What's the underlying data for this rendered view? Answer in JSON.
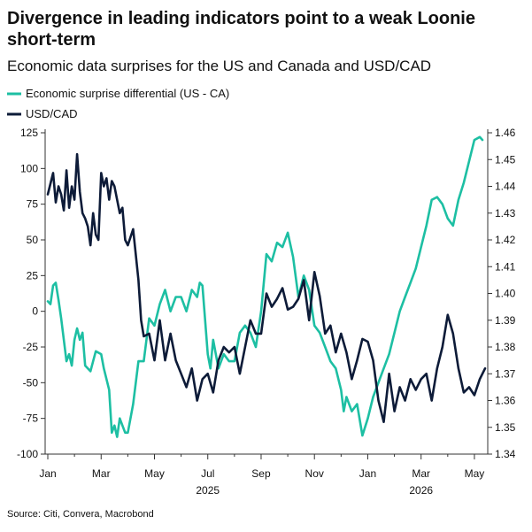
{
  "chart_data": {
    "type": "line",
    "title_line1": "Divergence in leading indicators point to a weak Loonie",
    "title_line2": "short-term",
    "subtitle": "Economic data surprises for the US and Canada and USD/CAD",
    "source": "Source: Citi, Convera, Macrobond",
    "x_ticks": [
      "Jan",
      "Mar",
      "May",
      "Jul",
      "Sep",
      "Nov",
      "Jan",
      "Mar",
      "May"
    ],
    "x_tick_months": [
      0,
      2,
      4,
      6,
      8,
      10,
      12,
      14,
      16
    ],
    "year_labels": [
      {
        "label": "2025",
        "month": 6
      },
      {
        "label": "2026",
        "month": 14
      }
    ],
    "x_range_months": [
      -0.1,
      16.5
    ],
    "left_axis": {
      "ticks": [
        "125",
        "100",
        "75",
        "50",
        "25",
        "0",
        "-25",
        "-50",
        "-75",
        "-100"
      ],
      "ylim": [
        -100,
        125
      ]
    },
    "right_axis": {
      "ticks": [
        "1.46",
        "1.45",
        "1.44",
        "1.43",
        "1.42",
        "1.41",
        "1.40",
        "1.39",
        "1.38",
        "1.37",
        "1.36",
        "1.35",
        "1.34"
      ],
      "ylim": [
        1.34,
        1.46
      ]
    },
    "series": [
      {
        "name": "Economic surprise differential (US - CA)",
        "color": "#1dbfa3",
        "axis": "left",
        "x": [
          0,
          0.1,
          0.2,
          0.3,
          0.4,
          0.5,
          0.6,
          0.7,
          0.8,
          0.9,
          1.0,
          1.1,
          1.2,
          1.3,
          1.4,
          1.5,
          1.6,
          1.7,
          1.8,
          2.0,
          2.1,
          2.3,
          2.4,
          2.5,
          2.6,
          2.7,
          2.8,
          2.9,
          3.0,
          3.2,
          3.4,
          3.6,
          3.8,
          4.0,
          4.2,
          4.4,
          4.6,
          4.8,
          5.0,
          5.2,
          5.4,
          5.6,
          5.7,
          5.8,
          6.0,
          6.1,
          6.2,
          6.4,
          6.6,
          6.8,
          7.0,
          7.2,
          7.4,
          7.6,
          7.8,
          8.0,
          8.2,
          8.4,
          8.6,
          8.8,
          9.0,
          9.2,
          9.4,
          9.6,
          9.8,
          10.0,
          10.2,
          10.4,
          10.6,
          10.8,
          11.0,
          11.1,
          11.2,
          11.4,
          11.6,
          11.8,
          12.0,
          12.2,
          12.4,
          12.6,
          12.8,
          13.0,
          13.2,
          13.4,
          13.6,
          13.8,
          14.0,
          14.2,
          14.4,
          14.6,
          14.8,
          15.0,
          15.2,
          15.4,
          15.6,
          15.8,
          16.0,
          16.2,
          16.3
        ],
        "values": [
          7,
          5,
          18,
          20,
          8,
          -5,
          -20,
          -35,
          -30,
          -38,
          -20,
          -12,
          -20,
          -15,
          -38,
          -40,
          -42,
          -35,
          -28,
          -30,
          -40,
          -55,
          -85,
          -80,
          -88,
          -75,
          -80,
          -85,
          -85,
          -65,
          -35,
          -35,
          -5,
          -10,
          5,
          15,
          0,
          10,
          10,
          0,
          15,
          10,
          20,
          18,
          -30,
          -40,
          -20,
          -40,
          -30,
          -35,
          -35,
          -15,
          -10,
          -15,
          -25,
          0,
          40,
          35,
          48,
          45,
          55,
          38,
          10,
          25,
          15,
          -10,
          -15,
          -25,
          -35,
          -40,
          -55,
          -70,
          -60,
          -70,
          -65,
          -87,
          -75,
          -60,
          -50,
          -40,
          -30,
          -15,
          0,
          10,
          20,
          30,
          45,
          60,
          78,
          80,
          75,
          65,
          60,
          78,
          90,
          105,
          120,
          122,
          120
        ]
      },
      {
        "name": "USD/CAD",
        "color": "#0d1b38",
        "axis": "right",
        "x": [
          0,
          0.1,
          0.2,
          0.3,
          0.4,
          0.5,
          0.6,
          0.7,
          0.8,
          0.9,
          1.0,
          1.1,
          1.2,
          1.3,
          1.4,
          1.5,
          1.6,
          1.7,
          1.8,
          1.9,
          2.0,
          2.1,
          2.2,
          2.3,
          2.4,
          2.5,
          2.6,
          2.7,
          2.8,
          2.9,
          3.0,
          3.2,
          3.4,
          3.5,
          3.6,
          3.8,
          4.0,
          4.2,
          4.4,
          4.6,
          4.8,
          5.0,
          5.2,
          5.4,
          5.6,
          5.8,
          6.0,
          6.2,
          6.4,
          6.6,
          6.8,
          7.0,
          7.2,
          7.4,
          7.6,
          7.8,
          8.0,
          8.2,
          8.4,
          8.6,
          8.8,
          9.0,
          9.2,
          9.4,
          9.6,
          9.8,
          10.0,
          10.2,
          10.4,
          10.6,
          10.8,
          11.0,
          11.2,
          11.4,
          11.6,
          11.8,
          12.0,
          12.2,
          12.4,
          12.6,
          12.8,
          13.0,
          13.2,
          13.4,
          13.6,
          13.8,
          14.0,
          14.2,
          14.4,
          14.6,
          14.8,
          15.0,
          15.2,
          15.4,
          15.6,
          15.8,
          16.0,
          16.2,
          16.4
        ],
        "values": [
          1.437,
          1.441,
          1.445,
          1.434,
          1.44,
          1.437,
          1.431,
          1.446,
          1.432,
          1.44,
          1.435,
          1.452,
          1.438,
          1.43,
          1.428,
          1.425,
          1.418,
          1.43,
          1.422,
          1.42,
          1.445,
          1.44,
          1.443,
          1.435,
          1.442,
          1.44,
          1.435,
          1.43,
          1.432,
          1.42,
          1.418,
          1.424,
          1.405,
          1.39,
          1.384,
          1.385,
          1.375,
          1.39,
          1.375,
          1.385,
          1.375,
          1.37,
          1.365,
          1.372,
          1.36,
          1.368,
          1.37,
          1.363,
          1.375,
          1.38,
          1.378,
          1.38,
          1.37,
          1.38,
          1.39,
          1.385,
          1.385,
          1.4,
          1.395,
          1.398,
          1.402,
          1.394,
          1.395,
          1.398,
          1.405,
          1.39,
          1.408,
          1.399,
          1.385,
          1.388,
          1.378,
          1.385,
          1.378,
          1.368,
          1.375,
          1.383,
          1.382,
          1.375,
          1.36,
          1.352,
          1.37,
          1.356,
          1.365,
          1.36,
          1.368,
          1.364,
          1.368,
          1.37,
          1.36,
          1.372,
          1.38,
          1.392,
          1.385,
          1.372,
          1.363,
          1.365,
          1.362,
          1.368,
          1.372
        ]
      }
    ]
  }
}
